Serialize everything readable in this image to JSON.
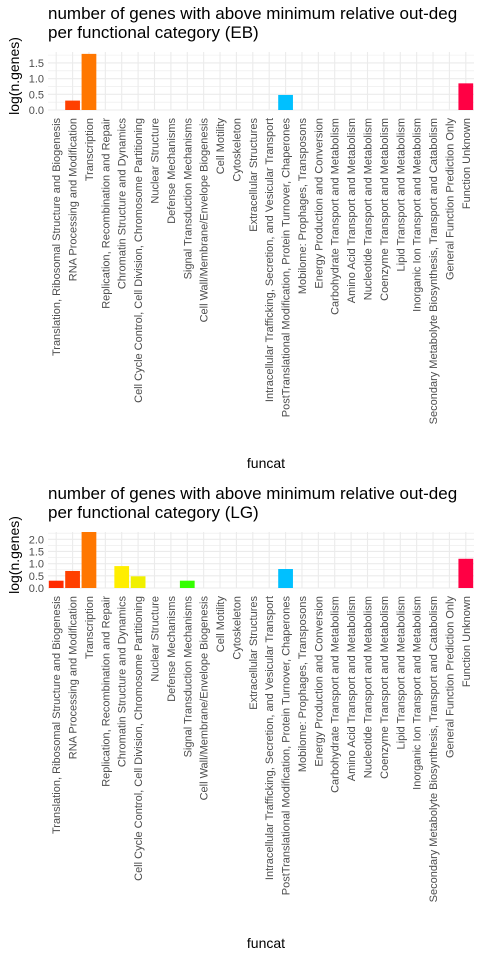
{
  "chart_data": [
    {
      "type": "bar",
      "title_lines": [
        "number of genes with above minimum relative out-deg",
        "per functional category (EB)"
      ],
      "xlabel": "funcat",
      "ylabel": "log(n.genes)",
      "ylim": [
        0,
        1.85
      ],
      "yticks": [
        "0.0",
        "0.5",
        "1.0",
        "1.5"
      ],
      "grid": true,
      "legend": "none",
      "categories": [
        "Translation, Ribosomal Structure and Biogenesis",
        "RNA Processing and Modification",
        "Transcription",
        "Replication, Recombination and Repair",
        "Chromatin Structure and Dynamics",
        "Cell Cycle Control, Cell Division, Chromosome Partitioning",
        "Nuclear Structure",
        "Defense Mechanisms",
        "Signal Transduction Mechanisms",
        "Cell Wall/Membrane/Envelope Biogenesis",
        "Cell Motility",
        "Cytoskeleton",
        "Extracellular Structures",
        "Intracellular Trafficking, Secretion, and Vesicular Transport",
        "PostTranslational Modification, Protein Turnover, Chaperones",
        "Mobilome: Prophages, Transposons",
        "Energy Production and Conversion",
        "Carbohydrate Transport and Metabolism",
        "Amino Acid Transport and Metabolism",
        "Nucleotide Transport and Metabolism",
        "Coenzyme Transport and Metabolism",
        "Lipid Transport and Metabolism",
        "Inorganic Ion Transport and Metabolism",
        "Secondary Metabolyte Biosynthesis, Transport and Catabolism",
        "General Function Prediction Only",
        "Function Unknown"
      ],
      "values": [
        0,
        0.3,
        1.79,
        0,
        0,
        0,
        0,
        0,
        0,
        0,
        0,
        0,
        0,
        0,
        0.48,
        0,
        0,
        0,
        0,
        0,
        0,
        0,
        0,
        0,
        0,
        0.85
      ],
      "colors": [
        "#ff2a00",
        "#ff4000",
        "#ff7700",
        "#ff9900",
        "#ffd700",
        "#f0f000",
        "#c8ff00",
        "#99ff00",
        "#33ff00",
        "#00ff40",
        "#00ff88",
        "#00ffc0",
        "#00f0ff",
        "#00d8ff",
        "#00c0ff",
        "#0099ff",
        "#0066ff",
        "#0033ff",
        "#2200ff",
        "#5500ff",
        "#8800ff",
        "#bb00ff",
        "#ee00ff",
        "#ff00cc",
        "#ff0080",
        "#ff0044"
      ]
    },
    {
      "type": "bar",
      "title_lines": [
        "number of genes with above minimum relative out-deg",
        "per functional category (LG)"
      ],
      "xlabel": "funcat",
      "ylabel": "log(n.genes)",
      "ylim": [
        0,
        2.3
      ],
      "yticks": [
        "0.0",
        "0.5",
        "1.0",
        "1.5",
        "2.0"
      ],
      "grid": true,
      "legend": "none",
      "categories": [
        "Translation, Ribosomal Structure and Biogenesis",
        "RNA Processing and Modification",
        "Transcription",
        "Replication, Recombination and Repair",
        "Chromatin Structure and Dynamics",
        "Cell Cycle Control, Cell Division, Chromosome Partitioning",
        "Nuclear Structure",
        "Defense Mechanisms",
        "Signal Transduction Mechanisms",
        "Cell Wall/Membrane/Envelope Biogenesis",
        "Cell Motility",
        "Cytoskeleton",
        "Extracellular Structures",
        "Intracellular Trafficking, Secretion, and Vesicular Transport",
        "PostTranslational Modification, Protein Turnover, Chaperones",
        "Mobilome: Prophages, Transposons",
        "Energy Production and Conversion",
        "Carbohydrate Transport and Metabolism",
        "Amino Acid Transport and Metabolism",
        "Nucleotide Transport and Metabolism",
        "Coenzyme Transport and Metabolism",
        "Lipid Transport and Metabolism",
        "Inorganic Ion Transport and Metabolism",
        "Secondary Metabolyte Biosynthesis, Transport and Catabolism",
        "General Function Prediction Only",
        "Function Unknown"
      ],
      "values": [
        0.3,
        0.7,
        2.3,
        0,
        0.9,
        0.48,
        0,
        0,
        0.3,
        0,
        0,
        0,
        0,
        0,
        0.78,
        0,
        0,
        0,
        0,
        0,
        0,
        0,
        0,
        0,
        0,
        1.2
      ],
      "colors": [
        "#ff2a00",
        "#ff4000",
        "#ff7700",
        "#ff9900",
        "#ffee00",
        "#f0f000",
        "#c8ff00",
        "#99ff00",
        "#33ff00",
        "#00ff40",
        "#00ff88",
        "#00ffc0",
        "#00f0ff",
        "#00d8ff",
        "#00c0ff",
        "#0099ff",
        "#0066ff",
        "#0033ff",
        "#2200ff",
        "#5500ff",
        "#8800ff",
        "#bb00ff",
        "#ee00ff",
        "#ff00cc",
        "#ff0080",
        "#ff0044"
      ]
    }
  ]
}
